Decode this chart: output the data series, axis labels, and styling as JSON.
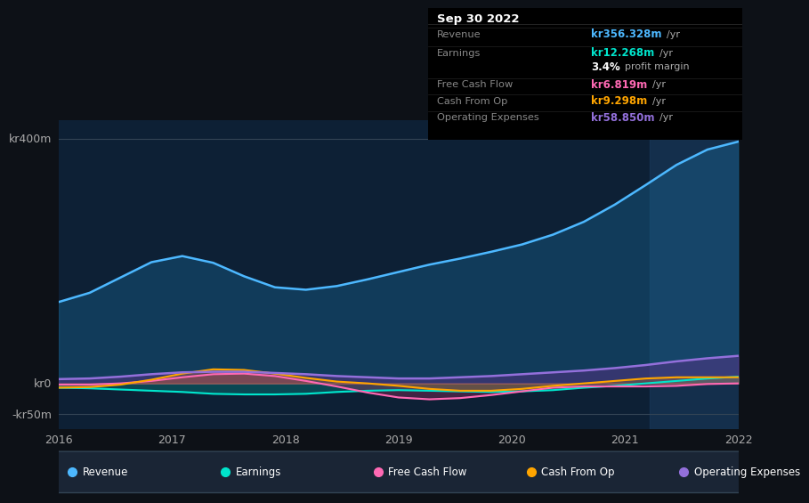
{
  "bg_color": "#0d1117",
  "chart_bg": "#0d1f2d",
  "highlight_bg": "#112233",
  "title": "Sep 30 2022",
  "table": {
    "Revenue": {
      "value": "kr356.328m",
      "color": "#4db8ff"
    },
    "Earnings": {
      "value": "kr12.268m",
      "color": "#00e5cc"
    },
    "margin": {
      "value": "3.4%",
      "note": "profit margin",
      "color": "#ffffff"
    },
    "Free Cash Flow": {
      "value": "kr6.819m",
      "color": "#ff69b4"
    },
    "Cash From Op": {
      "value": "kr9.298m",
      "color": "#ffa500"
    },
    "Operating Expenses": {
      "value": "kr58.850m",
      "color": "#9370db"
    }
  },
  "ylim": [
    -60,
    420
  ],
  "yticks": [
    0,
    400
  ],
  "ytick_labels": [
    "kr0",
    "kr400m"
  ],
  "ytick_minus": "-kr50m",
  "xlabel_ticks": [
    "2016",
    "2017",
    "2018",
    "2019",
    "2020",
    "2021",
    "2022"
  ],
  "xlim": [
    0,
    100
  ],
  "highlight_xstart": 87,
  "legend": [
    {
      "label": "Revenue",
      "color": "#4db8ff"
    },
    {
      "label": "Earnings",
      "color": "#00e5cc"
    },
    {
      "label": "Free Cash Flow",
      "color": "#ff69b4"
    },
    {
      "label": "Cash From Op",
      "color": "#ffa500"
    },
    {
      "label": "Operating Expenses",
      "color": "#9370db"
    }
  ],
  "revenue": [
    120,
    125,
    165,
    220,
    255,
    230,
    140,
    135,
    145,
    155,
    170,
    185,
    195,
    205,
    215,
    225,
    235,
    255,
    285,
    320,
    370,
    400,
    410
  ],
  "earnings": [
    -5,
    -8,
    -10,
    -12,
    -15,
    -18,
    -20,
    -22,
    -18,
    -15,
    -10,
    -8,
    -12,
    -15,
    -18,
    -15,
    -12,
    -8,
    -5,
    0,
    5,
    10,
    15
  ],
  "free_cash_flow": [
    0,
    -5,
    -8,
    5,
    10,
    20,
    25,
    18,
    10,
    -10,
    -15,
    -30,
    -35,
    -30,
    -20,
    -10,
    -5,
    0,
    -5,
    -8,
    -10,
    0,
    5
  ],
  "cash_from_op": [
    -5,
    -10,
    -15,
    5,
    20,
    40,
    30,
    15,
    5,
    -5,
    10,
    -5,
    -10,
    -20,
    -15,
    -10,
    -5,
    0,
    5,
    10,
    15,
    10,
    10
  ],
  "op_expenses": [
    5,
    8,
    10,
    15,
    20,
    25,
    20,
    18,
    15,
    12,
    10,
    8,
    5,
    10,
    12,
    15,
    18,
    20,
    25,
    30,
    35,
    45,
    50
  ]
}
